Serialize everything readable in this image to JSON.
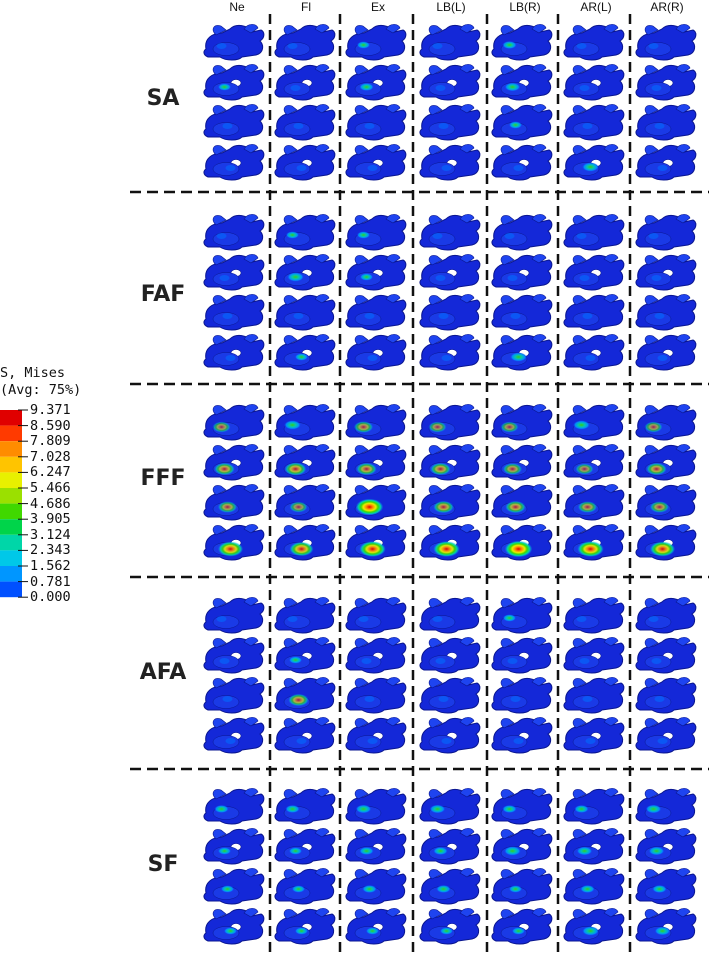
{
  "columns": [
    "Ne",
    "Fl",
    "Ex",
    "LB(L)",
    "LB(R)",
    "AR(L)",
    "AR(R)"
  ],
  "rows": [
    "SA",
    "FAF",
    "FFF",
    "AFA",
    "SF"
  ],
  "legend": {
    "title_line1": "S, Mises",
    "title_line2": "(Avg: 75%)",
    "values": [
      "9.371",
      "8.590",
      "7.809",
      "7.028",
      "6.247",
      "5.466",
      "4.686",
      "3.905",
      "3.124",
      "2.343",
      "1.562",
      "0.781",
      "0.000"
    ],
    "colors": [
      "#e00000",
      "#ff3a00",
      "#ff8c00",
      "#ffc400",
      "#e8f000",
      "#9be000",
      "#40d800",
      "#00d44a",
      "#00d6a8",
      "#00c8e8",
      "#0096ff",
      "#0050ff",
      "#0000e0"
    ]
  },
  "colors": {
    "model_base": "#1428d8",
    "model_dark": "#0a1690",
    "separator": "#111111"
  },
  "stress_levels": {
    "SA": [
      [
        0.25,
        0.3,
        0.2,
        0.2
      ],
      [
        0.2,
        0.25,
        0.2,
        0.2
      ],
      [
        0.3,
        0.35,
        0.2,
        0.2
      ],
      [
        0.25,
        0.2,
        0.2,
        0.2
      ],
      [
        0.35,
        0.4,
        0.3,
        0.2
      ],
      [
        0.2,
        0.2,
        0.2,
        0.45
      ],
      [
        0.2,
        0.25,
        0.2,
        0.2
      ]
    ],
    "FAF": [
      [
        0.25,
        0.2,
        0.2,
        0.2
      ],
      [
        0.3,
        0.45,
        0.2,
        0.3
      ],
      [
        0.3,
        0.3,
        0.2,
        0.25
      ],
      [
        0.25,
        0.2,
        0.2,
        0.2
      ],
      [
        0.2,
        0.2,
        0.2,
        0.45
      ],
      [
        0.2,
        0.2,
        0.2,
        0.2
      ],
      [
        0.2,
        0.2,
        0.2,
        0.2
      ]
    ],
    "FFF": [
      [
        0.5,
        0.6,
        0.55,
        0.8
      ],
      [
        0.45,
        0.65,
        0.5,
        0.75
      ],
      [
        0.55,
        0.6,
        0.9,
        0.85
      ],
      [
        0.5,
        0.6,
        0.6,
        0.85
      ],
      [
        0.5,
        0.55,
        0.6,
        0.9
      ],
      [
        0.45,
        0.5,
        0.55,
        0.85
      ],
      [
        0.5,
        0.6,
        0.55,
        0.8
      ]
    ],
    "AFA": [
      [
        0.2,
        0.25,
        0.25,
        0.2
      ],
      [
        0.25,
        0.3,
        0.6,
        0.2
      ],
      [
        0.25,
        0.2,
        0.2,
        0.2
      ],
      [
        0.2,
        0.2,
        0.2,
        0.2
      ],
      [
        0.3,
        0.2,
        0.2,
        0.2
      ],
      [
        0.2,
        0.2,
        0.2,
        0.2
      ],
      [
        0.2,
        0.2,
        0.2,
        0.2
      ]
    ],
    "SF": [
      [
        0.35,
        0.3,
        0.3,
        0.3
      ],
      [
        0.35,
        0.3,
        0.3,
        0.3
      ],
      [
        0.4,
        0.35,
        0.35,
        0.3
      ],
      [
        0.4,
        0.35,
        0.35,
        0.3
      ],
      [
        0.35,
        0.45,
        0.3,
        0.3
      ],
      [
        0.35,
        0.4,
        0.35,
        0.45
      ],
      [
        0.4,
        0.4,
        0.35,
        0.4
      ]
    ]
  }
}
